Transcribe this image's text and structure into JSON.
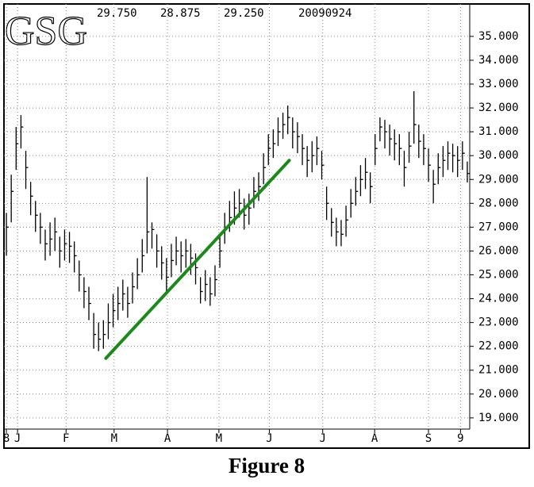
{
  "chart_data": {
    "type": "ohlc",
    "header": {
      "symbol": "GSG",
      "high": "29.750",
      "low": "28.875",
      "close": "29.250",
      "date": "20090924"
    },
    "caption": "Figure 8",
    "xlim": [
      -0.5,
      95.5
    ],
    "xticks": [
      {
        "value": 0,
        "label": "8"
      },
      {
        "value": 2.3,
        "label": "J"
      },
      {
        "value": 12.3,
        "label": "F"
      },
      {
        "value": 22.2,
        "label": "M"
      },
      {
        "value": 33.2,
        "label": "A"
      },
      {
        "value": 43.8,
        "label": "M"
      },
      {
        "value": 54.2,
        "label": "J"
      },
      {
        "value": 65.2,
        "label": "J"
      },
      {
        "value": 75.9,
        "label": "A"
      },
      {
        "value": 87,
        "label": "S"
      },
      {
        "value": 93.6,
        "label": "9"
      }
    ],
    "ylim": [
      18.53,
      36.36
    ],
    "yticks": [
      {
        "value": 19,
        "label": "19.000"
      },
      {
        "value": 20,
        "label": "20.000"
      },
      {
        "value": 21,
        "label": "21.000"
      },
      {
        "value": 22,
        "label": "22.000"
      },
      {
        "value": 23,
        "label": "23.000"
      },
      {
        "value": 24,
        "label": "24.000"
      },
      {
        "value": 25,
        "label": "25.000"
      },
      {
        "value": 26,
        "label": "26.000"
      },
      {
        "value": 27,
        "label": "27.000"
      },
      {
        "value": 28,
        "label": "28.000"
      },
      {
        "value": 29,
        "label": "29.000"
      },
      {
        "value": 30,
        "label": "30.000"
      },
      {
        "value": 31,
        "label": "31.000"
      },
      {
        "value": 32,
        "label": "32.000"
      },
      {
        "value": 33,
        "label": "33.000"
      },
      {
        "value": 34,
        "label": "34.000"
      },
      {
        "value": 35,
        "label": "35.000"
      }
    ],
    "grid": true,
    "color": "#000000",
    "high": [
      27.6,
      29.2,
      31.2,
      31.7,
      30.2,
      28.9,
      28.1,
      27.6,
      26.9,
      27.2,
      27.4,
      26.6,
      26.9,
      26.8,
      26.4,
      25.6,
      24.9,
      24.5,
      23.4,
      23.0,
      23.1,
      23.8,
      24.2,
      24.5,
      24.8,
      24.5,
      25.1,
      25.7,
      26.5,
      29.1,
      27.2,
      26.7,
      26.2,
      25.7,
      26.3,
      26.6,
      26.4,
      26.5,
      26.3,
      25.9,
      24.9,
      25.2,
      24.9,
      25.4,
      26.7,
      27.6,
      28.1,
      28.5,
      28.6,
      28.2,
      28.4,
      29.1,
      29.3,
      30.1,
      30.9,
      31.1,
      31.6,
      31.8,
      32.1,
      31.6,
      31.4,
      30.9,
      30.4,
      30.6,
      30.8,
      30.2,
      28.7,
      27.8,
      27.4,
      27.3,
      27.9,
      28.6,
      29.1,
      29.6,
      29.9,
      29.3,
      30.9,
      31.6,
      31.5,
      31.3,
      31.1,
      30.9,
      30.2,
      31.0,
      32.7,
      31.3,
      30.9,
      30.3,
      29.4,
      30.1,
      30.4,
      30.6,
      30.5,
      30.4,
      30.6,
      29.75
    ],
    "low": [
      25.8,
      27.2,
      29.4,
      30.3,
      28.6,
      27.5,
      26.8,
      26.3,
      25.6,
      25.8,
      26.0,
      25.3,
      25.6,
      25.5,
      25.1,
      24.3,
      23.6,
      23.1,
      21.9,
      21.8,
      21.9,
      22.3,
      22.8,
      23.1,
      23.5,
      23.2,
      23.8,
      24.4,
      25.1,
      25.9,
      26.1,
      25.3,
      24.8,
      24.2,
      24.9,
      25.4,
      25.1,
      25.3,
      25.0,
      24.6,
      23.8,
      23.9,
      23.7,
      24.1,
      25.3,
      26.3,
      26.8,
      27.1,
      27.4,
      26.9,
      27.1,
      27.8,
      28.1,
      28.8,
      29.6,
      29.9,
      30.4,
      30.7,
      30.9,
      30.3,
      30.1,
      29.6,
      29.1,
      29.3,
      29.6,
      29.0,
      27.3,
      26.6,
      26.2,
      26.2,
      26.6,
      27.4,
      27.9,
      28.3,
      28.6,
      28.0,
      29.6,
      30.6,
      30.3,
      30.0,
      29.8,
      29.6,
      28.7,
      29.7,
      30.5,
      29.9,
      29.6,
      28.9,
      28.0,
      28.8,
      29.1,
      29.4,
      29.3,
      29.1,
      29.4,
      28.875
    ],
    "close": [
      27.0,
      28.5,
      30.5,
      31.2,
      29.5,
      28.3,
      27.5,
      27.0,
      26.3,
      26.5,
      26.8,
      26.0,
      26.3,
      26.2,
      25.8,
      25.0,
      24.3,
      23.8,
      22.5,
      22.3,
      22.5,
      23.0,
      23.5,
      23.8,
      24.2,
      23.8,
      24.5,
      25.0,
      25.8,
      26.8,
      26.9,
      26.0,
      25.5,
      24.9,
      25.6,
      26.0,
      25.8,
      26.0,
      25.7,
      25.3,
      24.3,
      24.6,
      24.2,
      24.8,
      26.0,
      27.0,
      27.4,
      27.8,
      28.0,
      27.5,
      27.8,
      28.5,
      28.7,
      29.5,
      30.3,
      30.5,
      31.0,
      31.3,
      31.6,
      31.0,
      30.8,
      30.3,
      29.8,
      30.0,
      30.3,
      29.6,
      28.0,
      27.2,
      26.8,
      26.7,
      27.3,
      28.0,
      28.5,
      29.0,
      29.3,
      28.7,
      30.3,
      31.2,
      31.0,
      30.7,
      30.5,
      30.3,
      29.5,
      30.4,
      31.3,
      30.6,
      30.3,
      29.6,
      28.8,
      29.5,
      29.8,
      30.1,
      30.0,
      29.8,
      30.1,
      29.25
    ],
    "trend_line": {
      "x": [
        20.5,
        58.3
      ],
      "y": [
        21.5,
        29.8
      ],
      "color": "#1a8a1a"
    }
  }
}
